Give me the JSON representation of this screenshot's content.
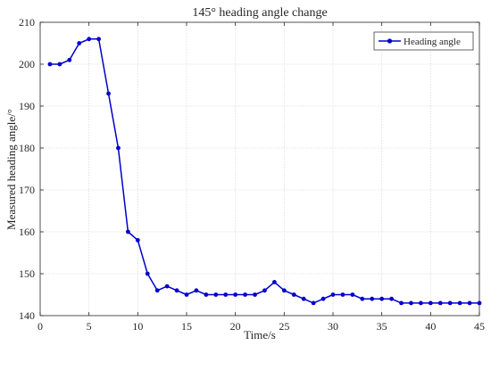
{
  "chart_data": {
    "type": "line",
    "title": "145° heading angle change",
    "xlabel": "Time/s",
    "ylabel": "Measured heading angle/°",
    "xlim": [
      0,
      45
    ],
    "ylim": [
      140,
      210
    ],
    "xticks": [
      0,
      5,
      10,
      15,
      20,
      25,
      30,
      35,
      40,
      45
    ],
    "yticks": [
      140,
      150,
      160,
      170,
      180,
      190,
      200,
      210
    ],
    "grid": true,
    "legend_position": "top-right",
    "series": [
      {
        "name": "Heading angle",
        "color": "#0000cc",
        "marker": "circle",
        "x": [
          1,
          2,
          3,
          4,
          5,
          6,
          7,
          8,
          9,
          10,
          11,
          12,
          13,
          14,
          15,
          16,
          17,
          18,
          19,
          20,
          21,
          22,
          23,
          24,
          25,
          26,
          27,
          28,
          29,
          30,
          31,
          32,
          33,
          34,
          35,
          36,
          37,
          38,
          39,
          40,
          41,
          42,
          43,
          44,
          45
        ],
        "y": [
          200,
          200,
          201,
          205,
          206,
          206,
          193,
          180,
          160,
          158,
          150,
          146,
          147,
          146,
          145,
          146,
          145,
          145,
          145,
          145,
          145,
          145,
          146,
          148,
          146,
          145,
          144,
          143,
          144,
          145,
          145,
          145,
          144,
          144,
          144,
          144,
          143,
          143,
          143,
          143,
          143,
          143,
          143,
          143,
          143
        ]
      }
    ]
  }
}
